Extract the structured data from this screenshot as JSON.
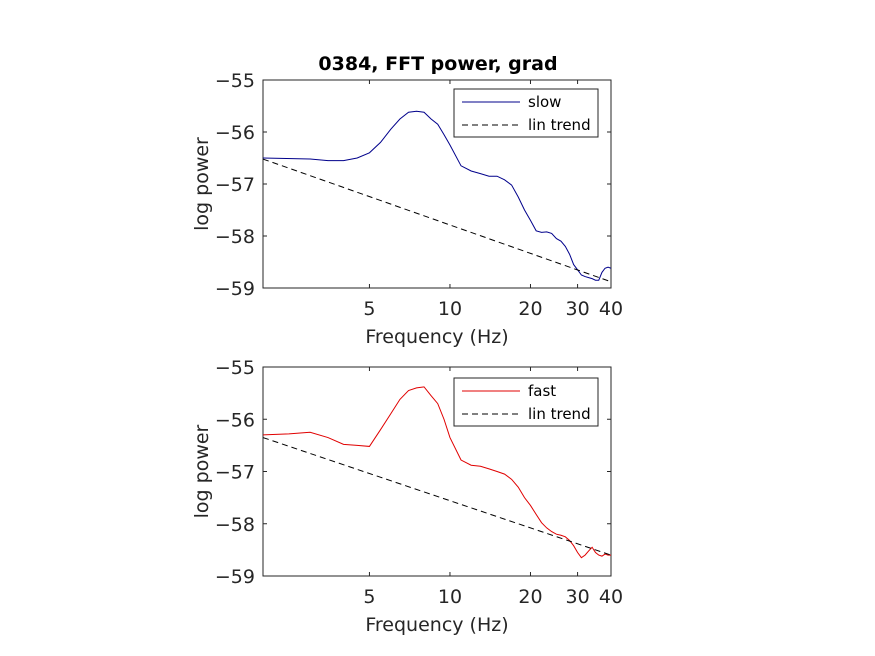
{
  "figure": {
    "title": "0384, FFT power, grad"
  },
  "chart_data": [
    {
      "type": "line",
      "title": "0384, FFT power, grad",
      "xlabel": "Frequency (Hz)",
      "ylabel": "log power",
      "xscale": "log",
      "xlim": [
        2,
        40
      ],
      "ylim": [
        -59,
        -55
      ],
      "xticks": [
        5,
        10,
        20,
        30,
        40
      ],
      "xtick_labels": [
        "5",
        "10",
        "20",
        "30",
        "40"
      ],
      "yticks": [
        -55,
        -56,
        -57,
        -58,
        -59
      ],
      "ytick_labels": [
        "−55",
        "−56",
        "−57",
        "−58",
        "−59"
      ],
      "grid": false,
      "legend_position": "top-right",
      "series": [
        {
          "name": "slow",
          "color": "#00008b",
          "style": "solid",
          "x": [
            2.0,
            3.0,
            3.5,
            4.0,
            4.5,
            5.0,
            5.5,
            6.0,
            6.5,
            7.0,
            7.5,
            8.0,
            8.5,
            9.0,
            9.5,
            10.0,
            11.0,
            12.0,
            13.0,
            14.0,
            15.0,
            16.0,
            17.0,
            18.0,
            19.0,
            20.0,
            21.0,
            22.0,
            23.0,
            24.0,
            25.0,
            26.0,
            27.0,
            28.0,
            29.0,
            30.0,
            31.0,
            32.0,
            33.0,
            34.0,
            35.0,
            36.0,
            37.0,
            38.0,
            39.0,
            40.0
          ],
          "y": [
            -56.5,
            -56.52,
            -56.55,
            -56.55,
            -56.5,
            -56.4,
            -56.2,
            -55.95,
            -55.75,
            -55.62,
            -55.6,
            -55.62,
            -55.75,
            -55.85,
            -56.05,
            -56.25,
            -56.65,
            -56.75,
            -56.8,
            -56.85,
            -56.85,
            -56.92,
            -57.02,
            -57.25,
            -57.5,
            -57.7,
            -57.9,
            -57.93,
            -57.92,
            -57.95,
            -58.05,
            -58.1,
            -58.2,
            -58.35,
            -58.55,
            -58.65,
            -58.75,
            -58.78,
            -58.8,
            -58.82,
            -58.85,
            -58.85,
            -58.7,
            -58.62,
            -58.6,
            -58.62
          ]
        },
        {
          "name": "lin trend",
          "color": "#000000",
          "style": "dashed",
          "x": [
            2,
            40
          ],
          "y": [
            -56.52,
            -58.88
          ]
        }
      ]
    },
    {
      "type": "line",
      "title": "",
      "xlabel": "Frequency (Hz)",
      "ylabel": "log power",
      "xscale": "log",
      "xlim": [
        2,
        40
      ],
      "ylim": [
        -59,
        -55
      ],
      "xticks": [
        5,
        10,
        20,
        30,
        40
      ],
      "xtick_labels": [
        "5",
        "10",
        "20",
        "30",
        "40"
      ],
      "yticks": [
        -55,
        -56,
        -57,
        -58,
        -59
      ],
      "ytick_labels": [
        "−55",
        "−56",
        "−57",
        "−58",
        "−59"
      ],
      "grid": false,
      "legend_position": "top-right",
      "series": [
        {
          "name": "fast",
          "color": "#e00000",
          "style": "solid",
          "x": [
            2.0,
            2.5,
            3.0,
            3.5,
            4.0,
            4.5,
            5.0,
            5.5,
            6.0,
            6.5,
            7.0,
            7.5,
            8.0,
            8.5,
            9.0,
            9.5,
            10.0,
            11.0,
            12.0,
            13.0,
            14.0,
            15.0,
            16.0,
            17.0,
            18.0,
            19.0,
            20.0,
            21.0,
            22.0,
            23.0,
            24.0,
            25.0,
            26.0,
            27.0,
            28.0,
            29.0,
            30.0,
            31.0,
            32.0,
            33.0,
            34.0,
            35.0,
            36.0,
            37.0,
            38.0,
            39.0,
            40.0
          ],
          "y": [
            -56.3,
            -56.28,
            -56.25,
            -56.35,
            -56.48,
            -56.5,
            -56.52,
            -56.2,
            -55.9,
            -55.62,
            -55.45,
            -55.4,
            -55.38,
            -55.55,
            -55.7,
            -56.0,
            -56.35,
            -56.78,
            -56.88,
            -56.9,
            -56.95,
            -57.0,
            -57.05,
            -57.15,
            -57.3,
            -57.5,
            -57.65,
            -57.82,
            -57.98,
            -58.08,
            -58.15,
            -58.2,
            -58.22,
            -58.25,
            -58.32,
            -58.42,
            -58.55,
            -58.65,
            -58.6,
            -58.52,
            -58.45,
            -58.55,
            -58.6,
            -58.62,
            -58.58,
            -58.6,
            -58.6
          ]
        },
        {
          "name": "lin trend",
          "color": "#000000",
          "style": "dashed",
          "x": [
            2,
            40
          ],
          "y": [
            -56.35,
            -58.6
          ]
        }
      ]
    }
  ]
}
